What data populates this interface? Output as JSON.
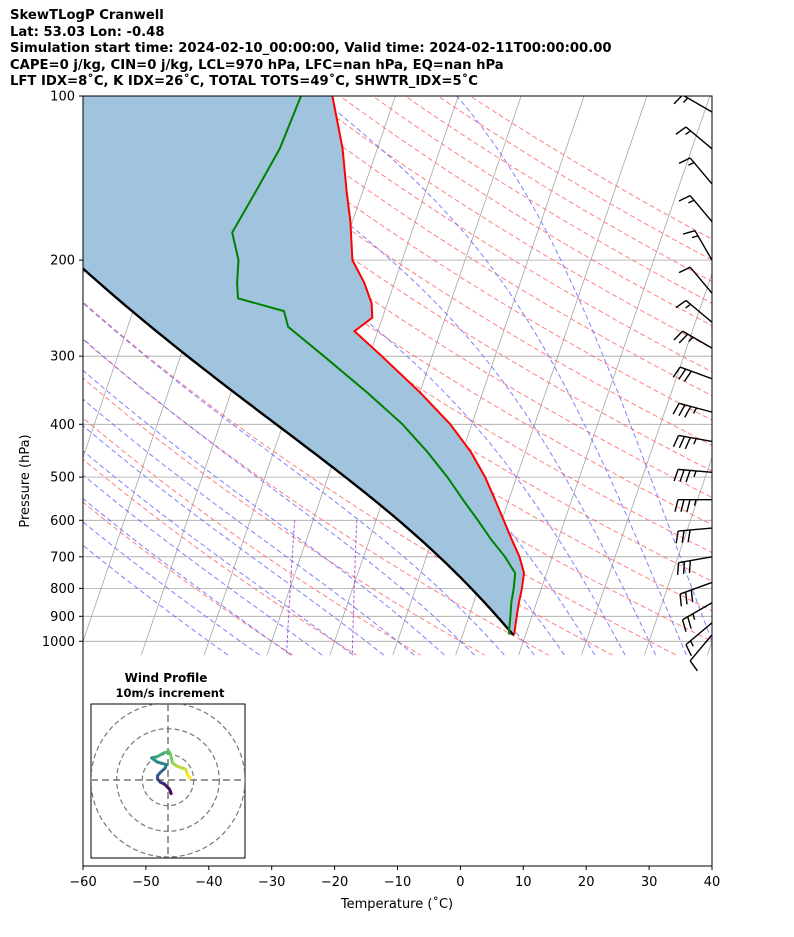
{
  "title_lines": [
    "SkewTLogP Cranwell",
    "Lat: 53.03   Lon: -0.48",
    "Simulation start time: 2024-02-10_00:00:00, Valid time: 2024-02-11T00:00:00.00",
    "CAPE=0 j/kg, CIN=0 j/kg, LCL=970 hPa, LFC=nan hPa, EQ=nan hPa",
    "LFT IDX=8˚C, K IDX=26˚C, TOTAL TOTS=49˚C, SHWTR_IDX=5˚C"
  ],
  "chart_data": {
    "type": "skewt-logp",
    "xlabel": "Temperature (˚C)",
    "ylabel": "Pressure (hPa)",
    "xlim": [
      -60,
      40
    ],
    "ylim": [
      1050,
      100
    ],
    "y_scale": "log",
    "x_ticks": [
      -60,
      -50,
      -40,
      -30,
      -20,
      -10,
      0,
      10,
      20,
      30,
      40
    ],
    "y_ticks": [
      100,
      200,
      300,
      400,
      500,
      600,
      700,
      800,
      900,
      1000
    ],
    "grid": true,
    "colors": {
      "temperature": "#ff0000",
      "dewpoint": "#008000",
      "parcel": "#000000",
      "fill": "#a0c4de",
      "isotherms": "#a6a6a6",
      "dry_adiabats": "#ff6060",
      "moist_adiabats": "#6060ff",
      "mixing_ratio": "#9932cc"
    },
    "temperature_profile": [
      {
        "p": 973,
        "t": 8.2
      },
      {
        "p": 950,
        "t": 8.0
      },
      {
        "p": 900,
        "t": 7.6
      },
      {
        "p": 850,
        "t": 7.2
      },
      {
        "p": 800,
        "t": 6.9
      },
      {
        "p": 750,
        "t": 6.4
      },
      {
        "p": 700,
        "t": 4.8
      },
      {
        "p": 650,
        "t": 2.6
      },
      {
        "p": 600,
        "t": 0.3
      },
      {
        "p": 550,
        "t": -2.2
      },
      {
        "p": 500,
        "t": -5.0
      },
      {
        "p": 450,
        "t": -8.6
      },
      {
        "p": 400,
        "t": -13.4
      },
      {
        "p": 350,
        "t": -19.9
      },
      {
        "p": 300,
        "t": -28.0
      },
      {
        "p": 270,
        "t": -33.7
      },
      {
        "p": 255,
        "t": -31.6
      },
      {
        "p": 240,
        "t": -32.5
      },
      {
        "p": 220,
        "t": -34.8
      },
      {
        "p": 200,
        "t": -37.9
      },
      {
        "p": 170,
        "t": -40.3
      },
      {
        "p": 150,
        "t": -42.5
      },
      {
        "p": 125,
        "t": -45.5
      },
      {
        "p": 100,
        "t": -50.0
      }
    ],
    "dewpoint_profile": [
      {
        "p": 973,
        "t": 7.4
      },
      {
        "p": 950,
        "t": 7.1
      },
      {
        "p": 900,
        "t": 6.6
      },
      {
        "p": 850,
        "t": 6.0
      },
      {
        "p": 800,
        "t": 5.6
      },
      {
        "p": 750,
        "t": 5.0
      },
      {
        "p": 700,
        "t": 2.5
      },
      {
        "p": 650,
        "t": -0.7
      },
      {
        "p": 600,
        "t": -3.8
      },
      {
        "p": 550,
        "t": -7.3
      },
      {
        "p": 500,
        "t": -11.0
      },
      {
        "p": 450,
        "t": -15.5
      },
      {
        "p": 400,
        "t": -21.0
      },
      {
        "p": 350,
        "t": -28.3
      },
      {
        "p": 300,
        "t": -37.2
      },
      {
        "p": 265,
        "t": -44.5
      },
      {
        "p": 248,
        "t": -46.0
      },
      {
        "p": 235,
        "t": -54.0
      },
      {
        "p": 220,
        "t": -55.0
      },
      {
        "p": 200,
        "t": -56.0
      },
      {
        "p": 178,
        "t": -58.5
      },
      {
        "p": 150,
        "t": -57.0
      },
      {
        "p": 125,
        "t": -55.5
      },
      {
        "p": 100,
        "t": -55.0
      }
    ],
    "parcel_profile_note": "dry/moist adiabatic parcel path from surface",
    "surface": {
      "p": 973,
      "t": 8.2,
      "td": 7.4
    },
    "wind_barbs": [
      {
        "p": 973,
        "speed_kt": 10,
        "dir_deg": 220
      },
      {
        "p": 925,
        "speed_kt": 15,
        "dir_deg": 230
      },
      {
        "p": 850,
        "speed_kt": 25,
        "dir_deg": 240
      },
      {
        "p": 780,
        "speed_kt": 30,
        "dir_deg": 250
      },
      {
        "p": 700,
        "speed_kt": 30,
        "dir_deg": 260
      },
      {
        "p": 620,
        "speed_kt": 30,
        "dir_deg": 265
      },
      {
        "p": 550,
        "speed_kt": 35,
        "dir_deg": 270
      },
      {
        "p": 490,
        "speed_kt": 35,
        "dir_deg": 275
      },
      {
        "p": 430,
        "speed_kt": 35,
        "dir_deg": 280
      },
      {
        "p": 380,
        "speed_kt": 35,
        "dir_deg": 285
      },
      {
        "p": 330,
        "speed_kt": 30,
        "dir_deg": 290
      },
      {
        "p": 290,
        "speed_kt": 25,
        "dir_deg": 300
      },
      {
        "p": 260,
        "speed_kt": 15,
        "dir_deg": 310
      },
      {
        "p": 230,
        "speed_kt": 10,
        "dir_deg": 320
      },
      {
        "p": 200,
        "speed_kt": 15,
        "dir_deg": 330
      },
      {
        "p": 170,
        "speed_kt": 15,
        "dir_deg": 320
      },
      {
        "p": 145,
        "speed_kt": 15,
        "dir_deg": 320
      },
      {
        "p": 125,
        "speed_kt": 15,
        "dir_deg": 310
      },
      {
        "p": 107,
        "speed_kt": 15,
        "dir_deg": 300
      }
    ],
    "hodograph": {
      "title": "Wind Profile",
      "subtitle": "10m/s increment",
      "ring_speeds_ms": [
        10,
        20,
        30
      ],
      "range_ms": 30,
      "points": [
        {
          "u": 1.2,
          "v": -5.3
        },
        {
          "u": 0.6,
          "v": -3.6
        },
        {
          "u": -1.4,
          "v": -1.6
        },
        {
          "u": -3.0,
          "v": -0.8
        },
        {
          "u": -4.1,
          "v": 0.4
        },
        {
          "u": -4.0,
          "v": 1.7
        },
        {
          "u": -3.1,
          "v": 2.8
        },
        {
          "u": -1.0,
          "v": 4.7
        },
        {
          "u": -0.7,
          "v": 6.0
        },
        {
          "u": -4.2,
          "v": 7.0
        },
        {
          "u": -6.4,
          "v": 8.6
        },
        {
          "u": -4.4,
          "v": 9.0
        },
        {
          "u": -1.5,
          "v": 10.6
        },
        {
          "u": 0.3,
          "v": 11.1
        },
        {
          "u": 1.0,
          "v": 9.9
        },
        {
          "u": 1.7,
          "v": 6.7
        },
        {
          "u": 3.4,
          "v": 5.4
        },
        {
          "u": 6.9,
          "v": 4.2
        },
        {
          "u": 7.5,
          "v": 2.3
        },
        {
          "u": 8.7,
          "v": 0.6
        }
      ]
    }
  }
}
